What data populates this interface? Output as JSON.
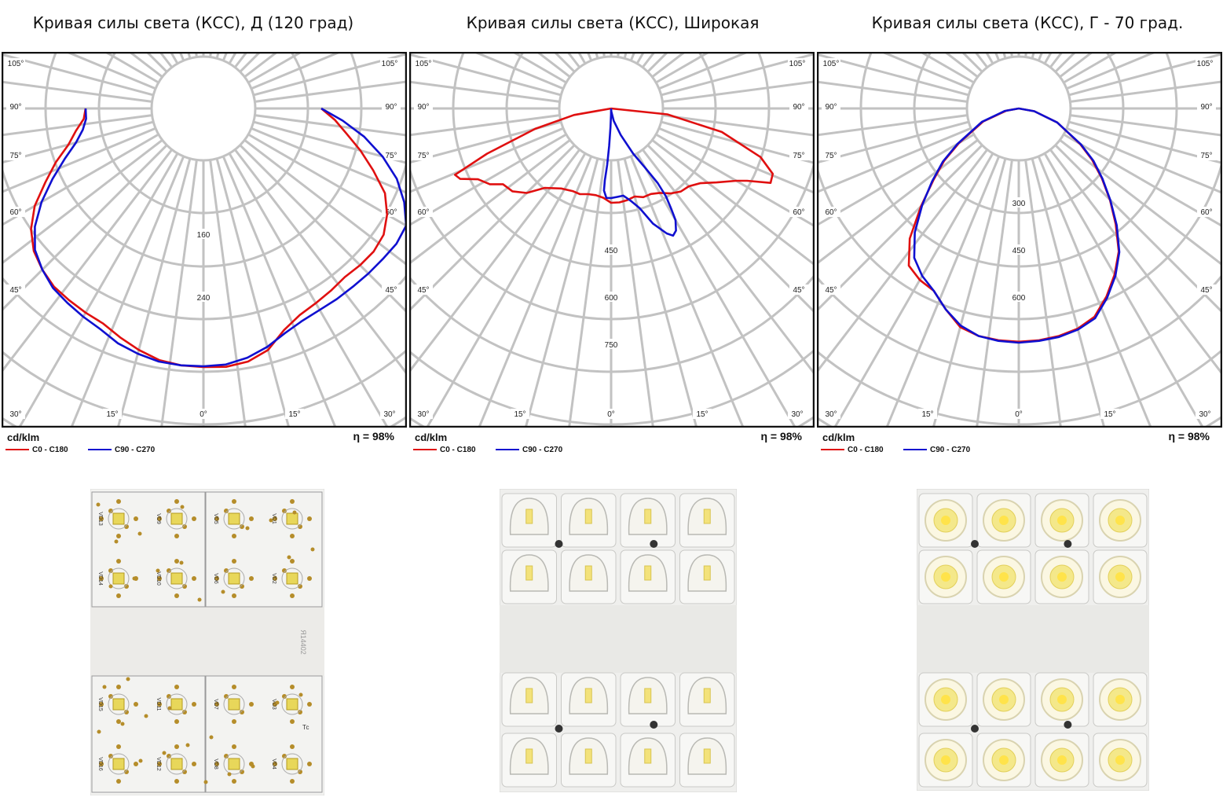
{
  "panels": [
    {
      "title": "Кривая силы света (КСС), Д (120 град)",
      "unit": "cd/klm",
      "efficiency": "η = 98%",
      "legend": [
        {
          "label": "C0 - C180",
          "color": "#e01010"
        },
        {
          "label": "C90 - C270",
          "color": "#1010d0"
        }
      ]
    },
    {
      "title": "Кривая силы света (КСС), Широкая",
      "unit": "cd/klm",
      "efficiency": "η = 98%",
      "legend": [
        {
          "label": "C0 - C180",
          "color": "#e01010"
        },
        {
          "label": "C90 - C270",
          "color": "#1010d0"
        }
      ]
    },
    {
      "title": "Кривая силы света (КСС), Г - 70 град.",
      "unit": "cd/klm",
      "efficiency": "η = 98%",
      "legend": [
        {
          "label": "C0 - C180",
          "color": "#e01010"
        },
        {
          "label": "C90 - C270",
          "color": "#1010d0"
        }
      ]
    }
  ],
  "board_labels": {
    "board1": [
      "VD13",
      "VD9",
      "VD5",
      "VD1",
      "VD14",
      "VD10",
      "VD6",
      "VD2",
      "VD15",
      "VD11",
      "VD7",
      "VD3",
      "VD16",
      "VD12",
      "VD8",
      "VD4",
      "Тс"
    ],
    "board1_code": "Я14402"
  },
  "chart_data": [
    {
      "type": "polar",
      "title": "Кривая силы света (КСС), Д (120 град)",
      "unit": "cd/klm",
      "angle_labels": [
        "105°",
        "90°",
        "75°",
        "60°",
        "45°",
        "30°",
        "15°",
        "0°",
        "15°",
        "30°",
        "45°",
        "60°",
        "75°",
        "90°",
        "105°"
      ],
      "rmax": 400,
      "radial_labels": [
        {
          "value": 160,
          "label": "160"
        },
        {
          "value": 240,
          "label": "240"
        }
      ],
      "series": [
        {
          "name": "C0 - C180",
          "color": "#e01010",
          "points": [
            [
              -90,
              150
            ],
            [
              -85,
              153
            ],
            [
              -80,
              165
            ],
            [
              -75,
              178
            ],
            [
              -70,
              200
            ],
            [
              -65,
              222
            ],
            [
              -60,
              248
            ],
            [
              -55,
              268
            ],
            [
              -50,
              282
            ],
            [
              -45,
              290
            ],
            [
              -40,
              296
            ],
            [
              -35,
              298
            ],
            [
              -30,
              300
            ],
            [
              -25,
              302
            ],
            [
              -20,
              310
            ],
            [
              -15,
              318
            ],
            [
              -10,
              325
            ],
            [
              -5,
              328
            ],
            [
              0,
              329
            ],
            [
              5,
              330
            ],
            [
              10,
              327
            ],
            [
              15,
              318
            ],
            [
              20,
              300
            ],
            [
              25,
              290
            ],
            [
              30,
              286
            ],
            [
              35,
              283
            ],
            [
              40,
              280
            ],
            [
              45,
              282
            ],
            [
              50,
              283
            ],
            [
              55,
              280
            ],
            [
              60,
              270
            ],
            [
              65,
              255
            ],
            [
              70,
              230
            ],
            [
              75,
              207
            ],
            [
              80,
              185
            ],
            [
              85,
              168
            ],
            [
              90,
              150
            ]
          ]
        },
        {
          "name": "C90 - C270",
          "color": "#1010d0",
          "points": [
            [
              -90,
              150
            ],
            [
              -85,
              150
            ],
            [
              -80,
              156
            ],
            [
              -75,
              168
            ],
            [
              -70,
              188
            ],
            [
              -65,
              212
            ],
            [
              -60,
              238
            ],
            [
              -55,
              262
            ],
            [
              -50,
              280
            ],
            [
              -45,
              290
            ],
            [
              -40,
              298
            ],
            [
              -35,
              302
            ],
            [
              -30,
              306
            ],
            [
              -25,
              310
            ],
            [
              -20,
              318
            ],
            [
              -15,
              323
            ],
            [
              -10,
              327
            ],
            [
              -5,
              328
            ],
            [
              0,
              328
            ],
            [
              5,
              327
            ],
            [
              10,
              322
            ],
            [
              15,
              314
            ],
            [
              20,
              304
            ],
            [
              25,
              298
            ],
            [
              30,
              296
            ],
            [
              35,
              296
            ],
            [
              40,
              296
            ],
            [
              45,
              297
            ],
            [
              50,
              298
            ],
            [
              55,
              300
            ],
            [
              60,
              298
            ],
            [
              65,
              282
            ],
            [
              70,
              262
            ],
            [
              75,
              236
            ],
            [
              80,
              208
            ],
            [
              85,
              178
            ],
            [
              90,
              150
            ]
          ]
        }
      ]
    },
    {
      "type": "polar",
      "title": "Кривая силы света (КСС), Широкая",
      "unit": "cd/klm",
      "angle_labels": [
        "105°",
        "90°",
        "75°",
        "60°",
        "45°",
        "30°",
        "15°",
        "0°",
        "15°",
        "30°",
        "45°",
        "60°",
        "75°",
        "90°",
        "105°"
      ],
      "rmax": 1000,
      "radial_labels": [
        {
          "value": 450,
          "label": "450"
        },
        {
          "value": 600,
          "label": "600"
        },
        {
          "value": 750,
          "label": "750"
        }
      ],
      "series": [
        {
          "name": "C0 - C180",
          "color": "#e01010",
          "points": [
            [
              -90,
              0
            ],
            [
              -80,
              120
            ],
            [
              -75,
              250
            ],
            [
              -70,
              420
            ],
            [
              -67,
              540
            ],
            [
              -65,
              530
            ],
            [
              -62,
              480
            ],
            [
              -58,
              455
            ],
            [
              -55,
              420
            ],
            [
              -50,
              410
            ],
            [
              -45,
              380
            ],
            [
              -40,
              330
            ],
            [
              -32,
              300
            ],
            [
              -25,
              290
            ],
            [
              -20,
              290
            ],
            [
              -15,
              282
            ],
            [
              -10,
              280
            ],
            [
              -5,
              285
            ],
            [
              0,
              300
            ],
            [
              5,
              300
            ],
            [
              10,
              296
            ],
            [
              15,
              290
            ],
            [
              20,
              300
            ],
            [
              25,
              300
            ],
            [
              30,
              310
            ],
            [
              35,
              330
            ],
            [
              40,
              345
            ],
            [
              45,
              350
            ],
            [
              50,
              370
            ],
            [
              55,
              410
            ],
            [
              60,
              460
            ],
            [
              62,
              490
            ],
            [
              65,
              560
            ],
            [
              68,
              555
            ],
            [
              72,
              500
            ],
            [
              78,
              360
            ],
            [
              84,
              180
            ],
            [
              90,
              0
            ]
          ]
        },
        {
          "name": "C90 - C270",
          "color": "#1010d0",
          "points": [
            [
              0,
              0
            ],
            [
              -1,
              20
            ],
            [
              -2,
              60
            ],
            [
              -3,
              120
            ],
            [
              -4,
              180
            ],
            [
              -5,
              230
            ],
            [
              -5,
              262
            ],
            [
              -3,
              285
            ],
            [
              0,
              285
            ],
            [
              4,
              282
            ],
            [
              8,
              280
            ],
            [
              12,
              300
            ],
            [
              16,
              330
            ],
            [
              20,
              390
            ],
            [
              24,
              435
            ],
            [
              26,
              450
            ],
            [
              28,
              440
            ],
            [
              30,
              410
            ],
            [
              31,
              370
            ],
            [
              32,
              330
            ],
            [
              32,
              280
            ],
            [
              30,
              220
            ],
            [
              26,
              160
            ],
            [
              20,
              90
            ],
            [
              12,
              40
            ],
            [
              5,
              10
            ],
            [
              0,
              0
            ]
          ]
        }
      ]
    },
    {
      "type": "polar",
      "title": "Кривая силы света (КСС), Г - 70 град.",
      "unit": "cd/klm",
      "angle_labels": [
        "105°",
        "90°",
        "75°",
        "60°",
        "45°",
        "30°",
        "15°",
        "0°",
        "15°",
        "30°",
        "45°",
        "60°",
        "75°",
        "90°",
        "105°"
      ],
      "rmax": 1000,
      "radial_labels": [
        {
          "value": 300,
          "label": "300"
        },
        {
          "value": 450,
          "label": "450"
        },
        {
          "value": 600,
          "label": "600"
        }
      ],
      "series": [
        {
          "name": "C0 - C180",
          "color": "#e01010",
          "points": [
            [
              -90,
              0
            ],
            [
              -80,
              40
            ],
            [
              -70,
              120
            ],
            [
              -60,
              220
            ],
            [
              -55,
              290
            ],
            [
              -50,
              355
            ],
            [
              -45,
              440
            ],
            [
              -40,
              540
            ],
            [
              -35,
              610
            ],
            [
              -30,
              630
            ],
            [
              -25,
              640
            ],
            [
              -20,
              680
            ],
            [
              -15,
              720
            ],
            [
              -10,
              735
            ],
            [
              -5,
              740
            ],
            [
              0,
              742
            ],
            [
              5,
              740
            ],
            [
              10,
              735
            ],
            [
              15,
              725
            ],
            [
              20,
              705
            ],
            [
              25,
              660
            ],
            [
              30,
              610
            ],
            [
              35,
              555
            ],
            [
              40,
              480
            ],
            [
              45,
              410
            ],
            [
              50,
              345
            ],
            [
              55,
              285
            ],
            [
              60,
              225
            ],
            [
              70,
              130
            ],
            [
              80,
              50
            ],
            [
              90,
              0
            ]
          ]
        },
        {
          "name": "C90 - C270",
          "color": "#1010d0",
          "points": [
            [
              -90,
              0
            ],
            [
              -80,
              45
            ],
            [
              -70,
              125
            ],
            [
              -60,
              225
            ],
            [
              -55,
              295
            ],
            [
              -50,
              360
            ],
            [
              -45,
              435
            ],
            [
              -40,
              515
            ],
            [
              -35,
              580
            ],
            [
              -30,
              615
            ],
            [
              -25,
              640
            ],
            [
              -20,
              680
            ],
            [
              -15,
              715
            ],
            [
              -10,
              735
            ],
            [
              -5,
              742
            ],
            [
              0,
              745
            ],
            [
              5,
              742
            ],
            [
              10,
              738
            ],
            [
              15,
              728
            ],
            [
              20,
              710
            ],
            [
              25,
              665
            ],
            [
              30,
              615
            ],
            [
              35,
              558
            ],
            [
              40,
              485
            ],
            [
              45,
              412
            ],
            [
              50,
              348
            ],
            [
              55,
              290
            ],
            [
              60,
              228
            ],
            [
              70,
              130
            ],
            [
              80,
              50
            ],
            [
              90,
              0
            ]
          ]
        }
      ]
    }
  ]
}
